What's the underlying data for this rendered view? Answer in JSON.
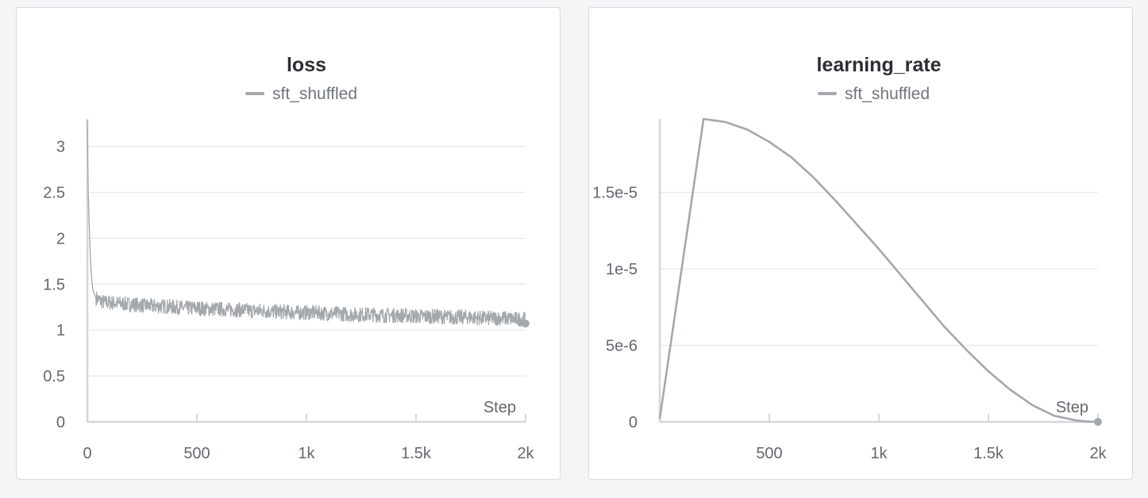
{
  "chart_data": [
    {
      "type": "line",
      "title": "loss",
      "xlabel": "Step",
      "ylabel": "",
      "legend_position": "top-center",
      "grid": true,
      "xlim": [
        0,
        2000
      ],
      "ylim": [
        0,
        3.3
      ],
      "x_ticks": [
        {
          "value": 0,
          "label": "0"
        },
        {
          "value": 500,
          "label": "500"
        },
        {
          "value": 1000,
          "label": "1k"
        },
        {
          "value": 1500,
          "label": "1.5k"
        },
        {
          "value": 2000,
          "label": "2k"
        }
      ],
      "y_ticks": [
        {
          "value": 0,
          "label": "0"
        },
        {
          "value": 0.5,
          "label": "0.5"
        },
        {
          "value": 1,
          "label": "1"
        },
        {
          "value": 1.5,
          "label": "1.5"
        },
        {
          "value": 2,
          "label": "2"
        },
        {
          "value": 2.5,
          "label": "2.5"
        },
        {
          "value": 3,
          "label": "3"
        }
      ],
      "series": [
        {
          "name": "sft_shuffled",
          "color": "#a3a8ad",
          "x": [
            0,
            2,
            5,
            8,
            12,
            16,
            20,
            25,
            30,
            40,
            60,
            80,
            100,
            150,
            200,
            250,
            300,
            350,
            400,
            450,
            500,
            550,
            600,
            650,
            700,
            750,
            800,
            850,
            900,
            950,
            1000,
            1050,
            1100,
            1150,
            1200,
            1250,
            1300,
            1350,
            1400,
            1450,
            1500,
            1550,
            1600,
            1650,
            1700,
            1750,
            1800,
            1850,
            1900,
            1950,
            2000
          ],
          "y": [
            3.28,
            2.9,
            2.4,
            2.2,
            1.9,
            1.7,
            1.55,
            1.45,
            1.4,
            1.35,
            1.32,
            1.3,
            1.3,
            1.29,
            1.28,
            1.27,
            1.26,
            1.26,
            1.25,
            1.24,
            1.24,
            1.23,
            1.23,
            1.22,
            1.22,
            1.21,
            1.21,
            1.2,
            1.2,
            1.19,
            1.19,
            1.19,
            1.18,
            1.18,
            1.17,
            1.17,
            1.17,
            1.16,
            1.16,
            1.16,
            1.15,
            1.15,
            1.15,
            1.14,
            1.14,
            1.14,
            1.13,
            1.13,
            1.13,
            1.12,
            1.12
          ],
          "noise_amplitude": 0.08
        }
      ]
    },
    {
      "type": "line",
      "title": "learning_rate",
      "xlabel": "Step",
      "ylabel": "",
      "legend_position": "top-center",
      "grid": true,
      "xlim": [
        0,
        2000
      ],
      "ylim": [
        0,
        1.98e-05
      ],
      "x_ticks": [
        {
          "value": 500,
          "label": "500"
        },
        {
          "value": 1000,
          "label": "1k"
        },
        {
          "value": 1500,
          "label": "1.5k"
        },
        {
          "value": 2000,
          "label": "2k"
        }
      ],
      "y_ticks": [
        {
          "value": 0,
          "label": "0"
        },
        {
          "value": 5e-06,
          "label": "5e-6"
        },
        {
          "value": 1e-05,
          "label": "1e-5"
        },
        {
          "value": 1.5e-05,
          "label": "1.5e-5"
        }
      ],
      "series": [
        {
          "name": "sft_shuffled",
          "color": "#a3a8ad",
          "x": [
            0,
            200,
            250,
            300,
            400,
            500,
            600,
            700,
            800,
            900,
            1000,
            1100,
            1200,
            1300,
            1400,
            1500,
            1600,
            1700,
            1800,
            1900,
            1950,
            2000
          ],
          "y": [
            2e-07,
            1.98e-05,
            1.97e-05,
            1.96e-05,
            1.91e-05,
            1.83e-05,
            1.73e-05,
            1.6e-05,
            1.45e-05,
            1.29e-05,
            1.13e-05,
            9.6e-06,
            7.9e-06,
            6.2e-06,
            4.7e-06,
            3.3e-06,
            2.1e-06,
            1.1e-06,
            4e-07,
            1e-07,
            2e-08,
            0.0
          ]
        }
      ]
    }
  ]
}
